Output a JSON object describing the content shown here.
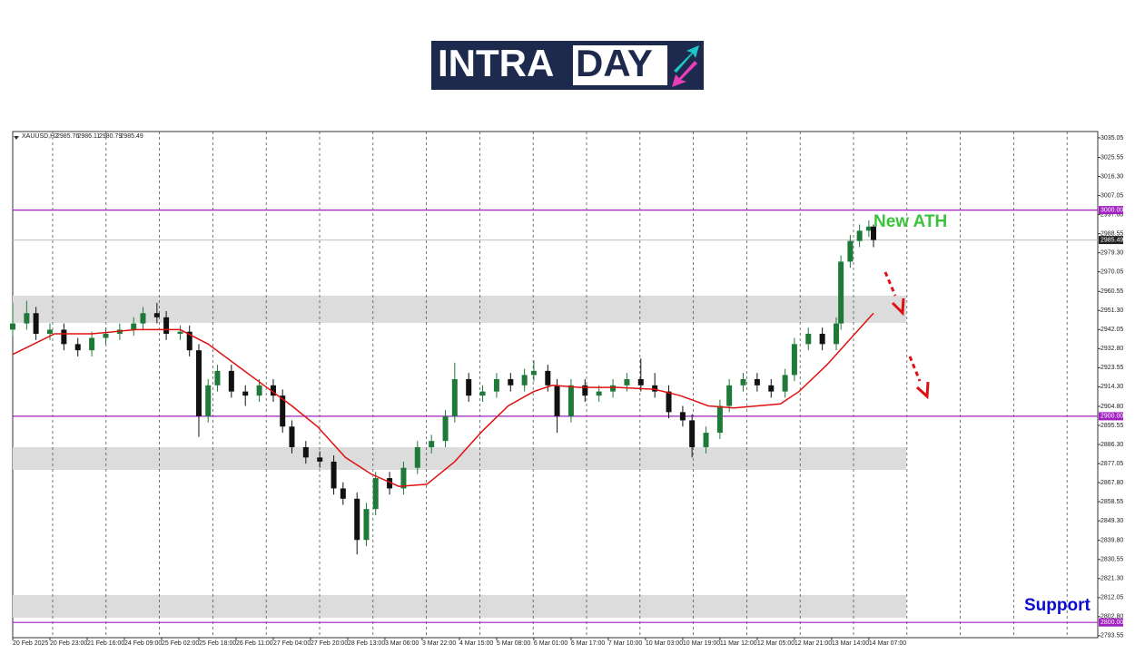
{
  "logo": {
    "part1": "INTRA",
    "part2": "DAY"
  },
  "chart_data": {
    "type": "candlestick",
    "symbol": "XAUUSD,H2",
    "ohlc": [
      2985.76,
      2986.11,
      2980.79,
      2985.49
    ],
    "xlim": [
      0,
      233.2
    ],
    "ylim": [
      2792.6,
      3038.1
    ],
    "yticks": [
      {
        "value": 3035.05,
        "label": "3035.05"
      },
      {
        "value": 3025.55,
        "label": "3025.55"
      },
      {
        "value": 3016.3,
        "label": "3016.30"
      },
      {
        "value": 3007.05,
        "label": "3007.05"
      },
      {
        "value": 2997.8,
        "label": "2997.80"
      },
      {
        "value": 2988.55,
        "label": "2988.55"
      },
      {
        "value": 2979.3,
        "label": "2979.30"
      },
      {
        "value": 2970.05,
        "label": "2970.05"
      },
      {
        "value": 2960.55,
        "label": "2960.55"
      },
      {
        "value": 2951.3,
        "label": "2951.30"
      },
      {
        "value": 2942.05,
        "label": "2942.05"
      },
      {
        "value": 2932.8,
        "label": "2932.80"
      },
      {
        "value": 2923.55,
        "label": "2923.55"
      },
      {
        "value": 2914.3,
        "label": "2914.30"
      },
      {
        "value": 2904.8,
        "label": "2904.80"
      },
      {
        "value": 2895.55,
        "label": "2895.55"
      },
      {
        "value": 2886.3,
        "label": "2886.30"
      },
      {
        "value": 2877.05,
        "label": "2877.05"
      },
      {
        "value": 2867.8,
        "label": "2867.80"
      },
      {
        "value": 2858.55,
        "label": "2858.55"
      },
      {
        "value": 2849.3,
        "label": "2849.30"
      },
      {
        "value": 2839.8,
        "label": "2839.80"
      },
      {
        "value": 2830.55,
        "label": "2830.55"
      },
      {
        "value": 2821.3,
        "label": "2821.30"
      },
      {
        "value": 2812.05,
        "label": "2812.05"
      },
      {
        "value": 2802.8,
        "label": "2802.80"
      },
      {
        "value": 2793.55,
        "label": "2793.55"
      }
    ],
    "xticks": [
      {
        "value": 0,
        "label": "20 Feb 2025"
      },
      {
        "value": 8,
        "label": "20 Feb 23:00"
      },
      {
        "value": 16,
        "label": "21 Feb 16:00"
      },
      {
        "value": 24,
        "label": "24 Feb 09:00"
      },
      {
        "value": 32,
        "label": "25 Feb 02:00"
      },
      {
        "value": 40,
        "label": "25 Feb 18:00"
      },
      {
        "value": 48,
        "label": "26 Feb 11:00"
      },
      {
        "value": 56,
        "label": "27 Feb 04:00"
      },
      {
        "value": 64,
        "label": "27 Feb 20:00"
      },
      {
        "value": 72,
        "label": "28 Feb 13:00"
      },
      {
        "value": 80,
        "label": "3 Mar 06:00"
      },
      {
        "value": 88,
        "label": "3 Mar 22:00"
      },
      {
        "value": 96,
        "label": "4 Mar 15:00"
      },
      {
        "value": 104,
        "label": "5 Mar 08:00"
      },
      {
        "value": 112,
        "label": "6 Mar 01:00"
      },
      {
        "value": 120,
        "label": "6 Mar 17:00"
      },
      {
        "value": 128,
        "label": "7 Mar 10:00"
      },
      {
        "value": 136,
        "label": "10 Mar 03:00"
      },
      {
        "value": 144,
        "label": "10 Mar 19:00"
      },
      {
        "value": 152,
        "label": "11 Mar 12:00"
      },
      {
        "value": 160,
        "label": "12 Mar 05:00"
      },
      {
        "value": 168,
        "label": "12 Mar 21:00"
      },
      {
        "value": 176,
        "label": "13 Mar 14:00"
      },
      {
        "value": 184,
        "label": "14 Mar 07:00"
      }
    ],
    "levels": [
      {
        "value": 3000,
        "label": "3000.00"
      },
      {
        "value": 2900,
        "label": "2900.00"
      },
      {
        "value": 2800,
        "label": "2800.00"
      }
    ],
    "level_color": "#a020c0",
    "current_price": 2985.49,
    "zones": [
      [
        2945.3,
        2958.5
      ],
      [
        2874,
        2885
      ],
      [
        2802.3,
        2813.3
      ]
    ],
    "candles": {
      "up_color": "#1f7a3a",
      "down_color": "#111111",
      "x": [
        0,
        3,
        5,
        8,
        11,
        14,
        17,
        20,
        23,
        26,
        28,
        31,
        33,
        36,
        38,
        40,
        42,
        44,
        47,
        50,
        53,
        56,
        58,
        60,
        63,
        66,
        69,
        71,
        74,
        76,
        78,
        81,
        84,
        87,
        90,
        93,
        95,
        98,
        101,
        104,
        107,
        110,
        112,
        115,
        117,
        120,
        123,
        126,
        129,
        132,
        135,
        138,
        141,
        144,
        146,
        149,
        152,
        154,
        157,
        160,
        163,
        166,
        168,
        171,
        174,
        177,
        178,
        180,
        182,
        184,
        185
      ],
      "open": [
        2942,
        2945,
        2950,
        2940,
        2942,
        2935,
        2932,
        2938,
        2940,
        2942,
        2945,
        2950,
        2948,
        2940,
        2941,
        2932,
        2900,
        2915,
        2922,
        2912,
        2910,
        2915,
        2910,
        2895,
        2885,
        2880,
        2878,
        2865,
        2860,
        2840,
        2855,
        2870,
        2865,
        2875,
        2885,
        2888,
        2900,
        2918,
        2910,
        2912,
        2918,
        2915,
        2920,
        2922,
        2915,
        2900,
        2915,
        2910,
        2912,
        2915,
        2918,
        2915,
        2912,
        2902,
        2898,
        2885,
        2892,
        2905,
        2915,
        2918,
        2915,
        2912,
        2920,
        2935,
        2940,
        2935,
        2945,
        2975,
        2985,
        2990,
        2992
      ],
      "high": [
        2955,
        2956,
        2953,
        2945,
        2945,
        2938,
        2941,
        2943,
        2945,
        2948,
        2953,
        2955,
        2951,
        2944,
        2944,
        2935,
        2918,
        2925,
        2925,
        2915,
        2918,
        2918,
        2913,
        2898,
        2888,
        2883,
        2881,
        2868,
        2863,
        2858,
        2873,
        2873,
        2878,
        2888,
        2891,
        2903,
        2926,
        2921,
        2915,
        2921,
        2921,
        2923,
        2927,
        2925,
        2918,
        2918,
        2918,
        2915,
        2918,
        2921,
        2928,
        2921,
        2915,
        2905,
        2901,
        2895,
        2908,
        2918,
        2921,
        2921,
        2918,
        2923,
        2938,
        2943,
        2943,
        2948,
        2978,
        2988,
        2993,
        2995,
        2993
      ],
      "low": [
        2939,
        2942,
        2937,
        2937,
        2932,
        2929,
        2929,
        2935,
        2937,
        2939,
        2942,
        2945,
        2937,
        2937,
        2929,
        2890,
        2897,
        2912,
        2909,
        2905,
        2907,
        2907,
        2892,
        2882,
        2877,
        2875,
        2862,
        2857,
        2833,
        2837,
        2852,
        2862,
        2862,
        2872,
        2882,
        2885,
        2897,
        2907,
        2907,
        2909,
        2912,
        2912,
        2917,
        2912,
        2892,
        2897,
        2907,
        2907,
        2909,
        2912,
        2912,
        2909,
        2899,
        2895,
        2880,
        2882,
        2889,
        2902,
        2912,
        2912,
        2909,
        2909,
        2917,
        2932,
        2932,
        2932,
        2942,
        2972,
        2982,
        2987,
        2982
      ],
      "close": [
        2945,
        2950,
        2940,
        2942,
        2935,
        2932,
        2938,
        2940,
        2942,
        2945,
        2950,
        2948,
        2940,
        2941,
        2932,
        2900,
        2915,
        2922,
        2912,
        2910,
        2915,
        2910,
        2895,
        2885,
        2880,
        2878,
        2865,
        2860,
        2840,
        2855,
        2870,
        2865,
        2875,
        2885,
        2888,
        2900,
        2918,
        2910,
        2912,
        2918,
        2915,
        2920,
        2922,
        2915,
        2900,
        2915,
        2910,
        2912,
        2915,
        2918,
        2915,
        2912,
        2902,
        2898,
        2885,
        2892,
        2905,
        2915,
        2918,
        2915,
        2912,
        2920,
        2935,
        2940,
        2935,
        2945,
        2975,
        2985,
        2990,
        2992,
        2985.49
      ]
    },
    "ma": {
      "color": "#e01010",
      "x": [
        0,
        9,
        17,
        26.5,
        36,
        42,
        48,
        54,
        60,
        65.5,
        71.5,
        77,
        83,
        89,
        95,
        101,
        106.5,
        112,
        116,
        122,
        130,
        138,
        143.5,
        149.5,
        155,
        165,
        169,
        175,
        181,
        185
      ],
      "values": [
        2930,
        2940,
        2940,
        2942,
        2942,
        2935,
        2925,
        2915,
        2905,
        2895,
        2880,
        2872,
        2866,
        2867,
        2878,
        2893,
        2905,
        2912,
        2915,
        2914,
        2914,
        2913,
        2910,
        2905,
        2904,
        2906,
        2912,
        2925,
        2940,
        2950
      ]
    },
    "annotations": [
      {
        "text": "New ATH",
        "color": "#3cc23c"
      },
      {
        "text": "Support",
        "color": "#0a0ad0"
      }
    ]
  }
}
